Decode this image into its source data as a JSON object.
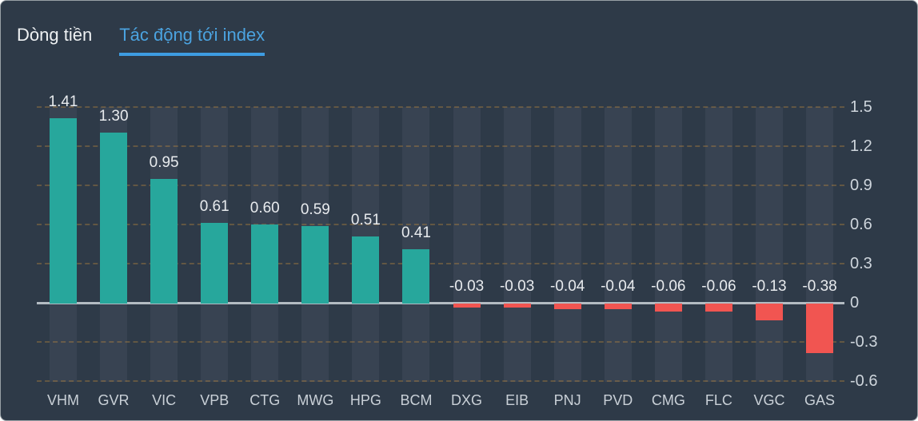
{
  "tabs": [
    {
      "label": "Dòng tiền",
      "active": false
    },
    {
      "label": "Tác động tới index",
      "active": true
    }
  ],
  "chart_data": {
    "type": "bar",
    "title": "Tác động tới index",
    "categories": [
      "VHM",
      "GVR",
      "VIC",
      "VPB",
      "CTG",
      "MWG",
      "HPG",
      "BCM",
      "DXG",
      "EIB",
      "PNJ",
      "PVD",
      "CMG",
      "FLC",
      "VGC",
      "GAS"
    ],
    "values": [
      1.41,
      1.3,
      0.95,
      0.61,
      0.6,
      0.59,
      0.51,
      0.41,
      -0.03,
      -0.03,
      -0.04,
      -0.04,
      -0.06,
      -0.06,
      -0.13,
      -0.38
    ],
    "labels": [
      "1.41",
      "1.30",
      "0.95",
      "0.61",
      "0.60",
      "0.59",
      "0.51",
      "0.41",
      "-0.03",
      "-0.03",
      "-0.04",
      "-0.04",
      "-0.06",
      "-0.06",
      "-0.13",
      "-0.38"
    ],
    "y_ticks": [
      "1.5",
      "1.2",
      "0.9",
      "0.6",
      "0.3",
      "0",
      "-0.3",
      "-0.6"
    ],
    "ylim": [
      -0.6,
      1.5
    ],
    "grid": "dashed horizontal",
    "legend": "none",
    "axis_position": "right",
    "colors": {
      "positive_bar": "#27a79c",
      "negative_bar": "#f15551",
      "zero_line": "#b3bbc2",
      "column_band": "#384352",
      "background": "#2e3a48",
      "grid_dash": "rgba(210,150,60,0.32)",
      "active_tab": "#4ba3e0",
      "tab_underline": "#3d9ce2"
    }
  }
}
